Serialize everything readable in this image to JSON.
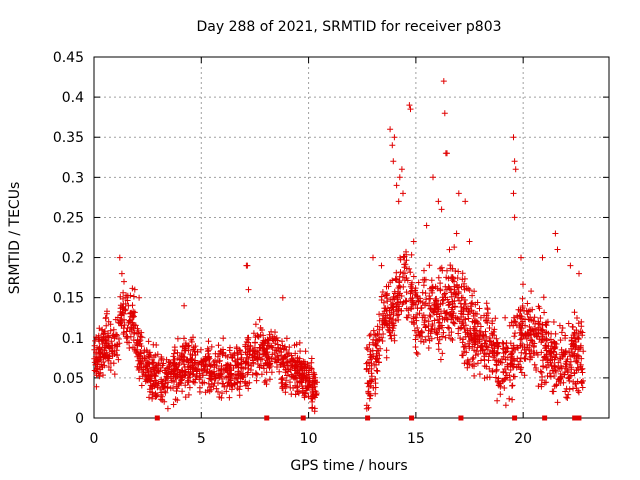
{
  "chart_data": {
    "type": "scatter",
    "title": "Day 288 of 2021, SRMTID for receiver p803",
    "xlabel": "GPS time / hours",
    "ylabel": "SRMTID / TECUs",
    "xlim": [
      0,
      24
    ],
    "ylim": [
      0,
      0.45
    ],
    "xticks": [
      "0",
      "5",
      "10",
      "15",
      "20"
    ],
    "xtick_values": [
      0,
      5,
      10,
      15,
      20
    ],
    "yticks": [
      "0",
      "0.05",
      "0.1",
      "0.15",
      "0.2",
      "0.25",
      "0.3",
      "0.35",
      "0.4",
      "0.45"
    ],
    "ytick_values": [
      0,
      0.05,
      0.1,
      0.15,
      0.2,
      0.25,
      0.3,
      0.35,
      0.4,
      0.45
    ],
    "grid": true,
    "marker": "+",
    "color": "#e00000",
    "data_gap_markers_hours": [
      2.95,
      8.05,
      9.75,
      12.75,
      14.8,
      17.1,
      19.6,
      21.0,
      22.4,
      22.6
    ],
    "series": [
      {
        "name": "SRMTID",
        "segments": [
          {
            "x_range": [
              0.0,
              10.4
            ],
            "anchors": [
              [
                0.0,
                0.07
              ],
              [
                0.5,
                0.09
              ],
              [
                1.0,
                0.09
              ],
              [
                1.3,
                0.13
              ],
              [
                1.8,
                0.12
              ],
              [
                2.2,
                0.07
              ],
              [
                3.0,
                0.05
              ],
              [
                3.5,
                0.05
              ],
              [
                4.2,
                0.07
              ],
              [
                5.0,
                0.06
              ],
              [
                6.0,
                0.06
              ],
              [
                7.0,
                0.06
              ],
              [
                7.5,
                0.08
              ],
              [
                8.0,
                0.08
              ],
              [
                8.5,
                0.08
              ],
              [
                9.0,
                0.06
              ],
              [
                9.5,
                0.06
              ],
              [
                10.0,
                0.05
              ],
              [
                10.4,
                0.03
              ]
            ],
            "spread": 0.02
          },
          {
            "x_range": [
              12.7,
              22.8
            ],
            "anchors": [
              [
                12.7,
                0.06
              ],
              [
                13.1,
                0.07
              ],
              [
                13.5,
                0.13
              ],
              [
                14.0,
                0.13
              ],
              [
                14.4,
                0.17
              ],
              [
                14.8,
                0.15
              ],
              [
                15.2,
                0.12
              ],
              [
                15.8,
                0.14
              ],
              [
                16.3,
                0.14
              ],
              [
                16.8,
                0.15
              ],
              [
                17.3,
                0.12
              ],
              [
                17.8,
                0.1
              ],
              [
                18.4,
                0.09
              ],
              [
                19.0,
                0.07
              ],
              [
                19.5,
                0.08
              ],
              [
                20.0,
                0.11
              ],
              [
                20.5,
                0.1
              ],
              [
                21.0,
                0.09
              ],
              [
                21.5,
                0.07
              ],
              [
                22.0,
                0.07
              ],
              [
                22.5,
                0.08
              ],
              [
                22.8,
                0.07
              ]
            ],
            "spread": 0.03
          }
        ],
        "outliers": [
          [
            0.6,
            0.13
          ],
          [
            1.2,
            0.2
          ],
          [
            1.3,
            0.18
          ],
          [
            1.4,
            0.17
          ],
          [
            1.9,
            0.16
          ],
          [
            2.1,
            0.15
          ],
          [
            4.2,
            0.14
          ],
          [
            7.1,
            0.19
          ],
          [
            7.15,
            0.19
          ],
          [
            7.2,
            0.16
          ],
          [
            8.8,
            0.15
          ],
          [
            13.0,
            0.2
          ],
          [
            13.4,
            0.19
          ],
          [
            13.8,
            0.36
          ],
          [
            13.9,
            0.34
          ],
          [
            13.95,
            0.32
          ],
          [
            14.0,
            0.35
          ],
          [
            14.1,
            0.29
          ],
          [
            14.2,
            0.27
          ],
          [
            14.25,
            0.3
          ],
          [
            14.35,
            0.31
          ],
          [
            14.4,
            0.28
          ],
          [
            14.7,
            0.39
          ],
          [
            14.75,
            0.385
          ],
          [
            14.9,
            0.22
          ],
          [
            15.5,
            0.24
          ],
          [
            15.8,
            0.3
          ],
          [
            16.05,
            0.27
          ],
          [
            16.2,
            0.26
          ],
          [
            16.3,
            0.42
          ],
          [
            16.35,
            0.38
          ],
          [
            16.4,
            0.33
          ],
          [
            16.45,
            0.33
          ],
          [
            16.9,
            0.23
          ],
          [
            17.0,
            0.28
          ],
          [
            17.3,
            0.27
          ],
          [
            17.5,
            0.22
          ],
          [
            19.55,
            0.35
          ],
          [
            19.6,
            0.32
          ],
          [
            19.65,
            0.31
          ],
          [
            19.6,
            0.25
          ],
          [
            19.55,
            0.28
          ],
          [
            19.9,
            0.2
          ],
          [
            20.9,
            0.2
          ],
          [
            21.5,
            0.23
          ],
          [
            21.6,
            0.21
          ],
          [
            22.2,
            0.19
          ],
          [
            22.6,
            0.18
          ]
        ]
      }
    ]
  }
}
